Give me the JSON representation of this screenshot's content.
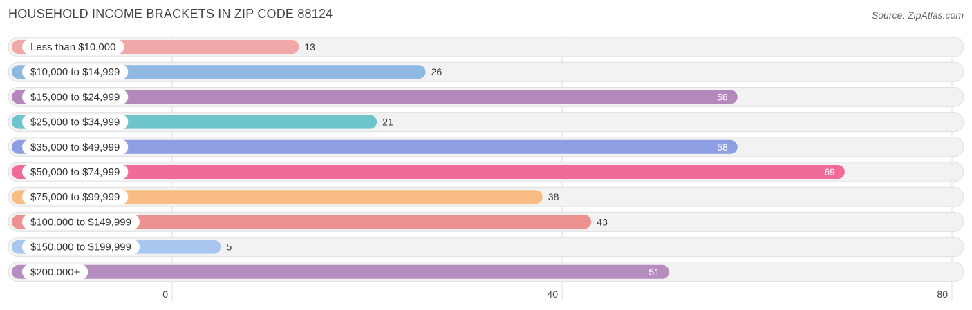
{
  "header": {
    "title": "HOUSEHOLD INCOME BRACKETS IN ZIP CODE 88124",
    "source": "Source: ZipAtlas.com"
  },
  "chart_data": {
    "type": "bar",
    "orientation": "horizontal",
    "title": "HOUSEHOLD INCOME BRACKETS IN ZIP CODE 88124",
    "categories": [
      "Less than $10,000",
      "$10,000 to $14,999",
      "$15,000 to $24,999",
      "$25,000 to $34,999",
      "$35,000 to $49,999",
      "$50,000 to $74,999",
      "$75,000 to $99,999",
      "$100,000 to $149,999",
      "$150,000 to $199,999",
      "$200,000+"
    ],
    "values": [
      13,
      26,
      58,
      21,
      58,
      69,
      38,
      43,
      5,
      51
    ],
    "colors": [
      "#f0a8a8",
      "#8fb8e2",
      "#b488bd",
      "#6dc4cc",
      "#8e9ee3",
      "#f06b95",
      "#f9bd83",
      "#ec9190",
      "#a9c6ee",
      "#b58dbf"
    ],
    "xlim": [
      0,
      80
    ],
    "xticks": [
      0,
      40,
      80
    ],
    "grid": true
  }
}
